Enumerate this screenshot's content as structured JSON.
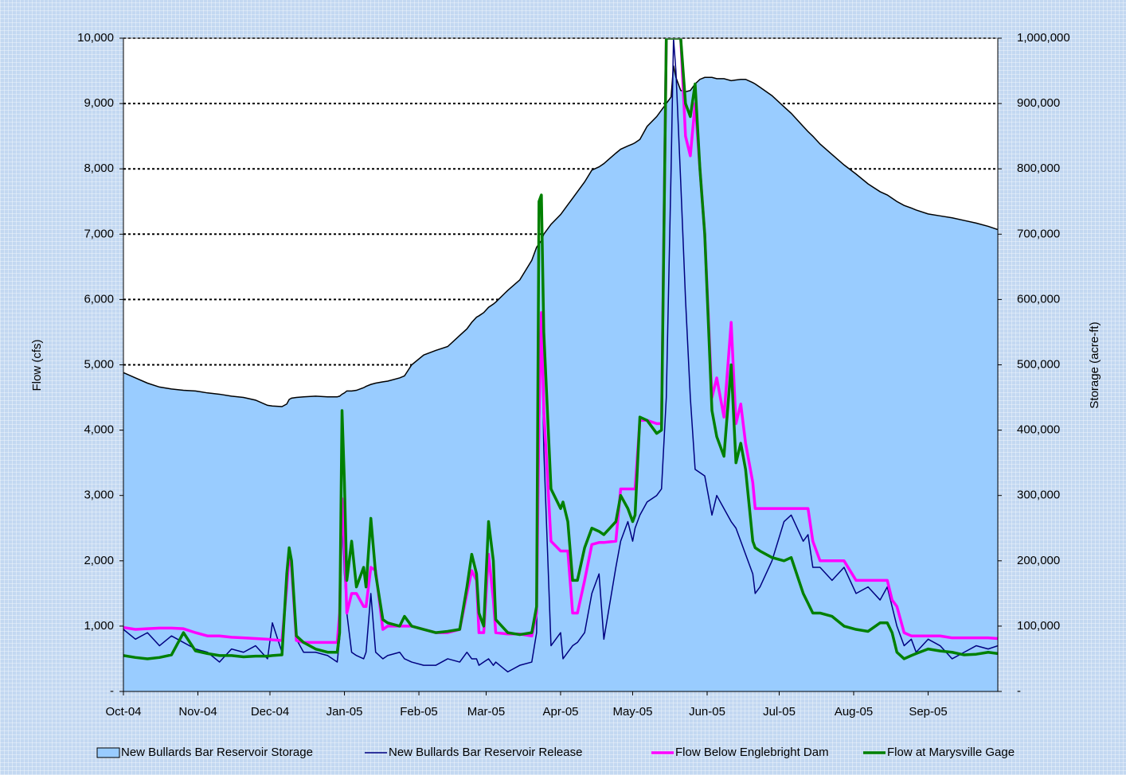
{
  "chart_data": {
    "type": "line",
    "xlim": [
      0,
      364
    ],
    "xticks": [
      {
        "value": 0,
        "label": "Oct-04"
      },
      {
        "value": 31,
        "label": "Nov-04"
      },
      {
        "value": 61,
        "label": "Dec-04"
      },
      {
        "value": 92,
        "label": "Jan-05"
      },
      {
        "value": 123,
        "label": "Feb-05"
      },
      {
        "value": 151,
        "label": "Mar-05"
      },
      {
        "value": 182,
        "label": "Apr-05"
      },
      {
        "value": 212,
        "label": "May-05"
      },
      {
        "value": 243,
        "label": "Jun-05"
      },
      {
        "value": 273,
        "label": "Jul-05"
      },
      {
        "value": 304,
        "label": "Aug-05"
      },
      {
        "value": 335,
        "label": "Sep-05"
      }
    ],
    "ylabel": "Flow (cfs)",
    "y2label": "Storage (acre-ft)",
    "ylim": [
      0,
      10000
    ],
    "yticks": [
      {
        "value": 0,
        "label": "-"
      },
      {
        "value": 1000,
        "label": "1,000"
      },
      {
        "value": 2000,
        "label": "2,000"
      },
      {
        "value": 3000,
        "label": "3,000"
      },
      {
        "value": 4000,
        "label": "4,000"
      },
      {
        "value": 5000,
        "label": "5,000"
      },
      {
        "value": 6000,
        "label": "6,000"
      },
      {
        "value": 7000,
        "label": "7,000"
      },
      {
        "value": 8000,
        "label": "8,000"
      },
      {
        "value": 9000,
        "label": "9,000"
      },
      {
        "value": 10000,
        "label": "10,000"
      }
    ],
    "y2lim": [
      0,
      1000000
    ],
    "y2ticks": [
      {
        "value": 0,
        "label": "-"
      },
      {
        "value": 100000,
        "label": "100,000"
      },
      {
        "value": 200000,
        "label": "200,000"
      },
      {
        "value": 300000,
        "label": "300,000"
      },
      {
        "value": 400000,
        "label": "400,000"
      },
      {
        "value": 500000,
        "label": "500,000"
      },
      {
        "value": 600000,
        "label": "600,000"
      },
      {
        "value": 700000,
        "label": "700,000"
      },
      {
        "value": 800000,
        "label": "800,000"
      },
      {
        "value": 900000,
        "label": "900,000"
      },
      {
        "value": 1000000,
        "label": "1,000,000"
      }
    ],
    "grid": true,
    "legend": "bottom",
    "x": [
      0,
      5,
      10,
      15,
      20,
      25,
      30,
      35,
      40,
      45,
      50,
      55,
      60,
      62,
      66,
      68,
      69,
      70,
      72,
      75,
      80,
      85,
      89,
      90,
      91,
      92,
      93,
      95,
      97,
      100,
      101,
      103,
      105,
      108,
      110,
      115,
      117,
      120,
      125,
      130,
      135,
      140,
      143,
      145,
      147,
      148,
      150,
      152,
      154,
      155,
      160,
      165,
      170,
      172,
      173,
      174,
      175,
      178,
      182,
      183,
      185,
      187,
      189,
      192,
      195,
      198,
      200,
      205,
      207,
      210,
      212,
      213,
      215,
      218,
      222,
      224,
      226,
      228,
      229,
      230,
      232,
      234,
      236,
      238,
      240,
      242,
      245,
      247,
      250,
      253,
      255,
      257,
      259,
      262,
      263,
      265,
      270,
      275,
      278,
      283,
      285,
      287,
      290,
      295,
      300,
      305,
      310,
      315,
      318,
      320,
      322,
      325,
      328,
      330,
      335,
      340,
      345,
      350,
      355,
      360,
      364
    ],
    "series": [
      {
        "name": "New Bullards Bar Reservoir Storage",
        "color": "#99ccff",
        "style": "area",
        "axis": "y2",
        "values": [
          488000,
          480000,
          472000,
          466000,
          463000,
          461000,
          460000,
          457000,
          455000,
          452000,
          450000,
          446000,
          438000,
          437000,
          436000,
          440000,
          447000,
          449000,
          450000,
          451000,
          452000,
          451000,
          451000,
          452000,
          455000,
          457000,
          460000,
          460000,
          461000,
          465000,
          467000,
          470000,
          472000,
          474000,
          475000,
          480000,
          483000,
          500000,
          515000,
          522000,
          528000,
          545000,
          555000,
          565000,
          573000,
          575000,
          580000,
          588000,
          593000,
          596000,
          614000,
          630000,
          660000,
          680000,
          685000,
          690000,
          700000,
          715000,
          730000,
          735000,
          745000,
          755000,
          765000,
          780000,
          798000,
          803000,
          808000,
          824000,
          830000,
          835000,
          838000,
          840000,
          845000,
          865000,
          880000,
          890000,
          900000,
          910000,
          958000,
          940000,
          920000,
          918000,
          920000,
          930000,
          937000,
          940000,
          940000,
          938000,
          938000,
          935000,
          936000,
          937000,
          937000,
          932000,
          930000,
          925000,
          912000,
          895000,
          885000,
          865000,
          857000,
          850000,
          838000,
          822000,
          806000,
          792000,
          777000,
          765000,
          760000,
          755000,
          750000,
          744000,
          740000,
          737000,
          731000,
          728000,
          725000,
          721000,
          717000,
          712000,
          707000
        ]
      },
      {
        "name": "New Bullards Bar Reservoir Release",
        "color": "#000080",
        "style": "thin",
        "values": [
          950,
          800,
          900,
          700,
          850,
          750,
          650,
          600,
          450,
          650,
          600,
          700,
          500,
          1050,
          600,
          1700,
          2100,
          1900,
          800,
          600,
          600,
          550,
          450,
          800,
          2800,
          1800,
          1200,
          600,
          550,
          500,
          600,
          1500,
          600,
          500,
          550,
          600,
          500,
          450,
          400,
          400,
          500,
          450,
          600,
          500,
          500,
          400,
          450,
          500,
          400,
          450,
          300,
          400,
          450,
          900,
          3500,
          5800,
          3700,
          700,
          900,
          500,
          600,
          700,
          750,
          900,
          1500,
          1800,
          800,
          1900,
          2300,
          2600,
          2300,
          2500,
          2700,
          2900,
          3000,
          3100,
          4500,
          8000,
          10000,
          9500,
          7800,
          6000,
          4500,
          3400,
          3350,
          3300,
          2700,
          3000,
          2800,
          2600,
          2500,
          2300,
          2100,
          1800,
          1500,
          1600,
          2000,
          2600,
          2700,
          2300,
          2400,
          1900,
          1900,
          1700,
          1900,
          1500,
          1600,
          1400,
          1600,
          1300,
          1000,
          700,
          800,
          600,
          800,
          700,
          500,
          600,
          700,
          650,
          700
        ]
      },
      {
        "name": "Flow Below Englebright Dam",
        "color": "#ff00ff",
        "style": "thick",
        "values": [
          980,
          950,
          960,
          970,
          970,
          960,
          900,
          850,
          850,
          830,
          820,
          810,
          800,
          790,
          780,
          1600,
          2100,
          1900,
          780,
          750,
          750,
          750,
          750,
          1200,
          2950,
          2300,
          1200,
          1500,
          1500,
          1300,
          1300,
          1900,
          1850,
          950,
          1000,
          1000,
          1000,
          1000,
          950,
          900,
          900,
          950,
          1500,
          1850,
          1700,
          900,
          900,
          2100,
          1400,
          900,
          880,
          880,
          850,
          1200,
          4200,
          5800,
          4300,
          2300,
          2150,
          2150,
          2150,
          1200,
          1200,
          1700,
          2250,
          2280,
          2280,
          2300,
          3100,
          3100,
          3100,
          3100,
          4150,
          4150,
          4100,
          4100,
          10000,
          10000,
          10000,
          10000,
          10000,
          8500,
          8200,
          9000,
          8000,
          7000,
          4500,
          4800,
          4200,
          5650,
          4100,
          4400,
          3800,
          3200,
          2800,
          2800,
          2800,
          2800,
          2800,
          2800,
          2800,
          2300,
          2000,
          2000,
          2000,
          1700,
          1700,
          1700,
          1700,
          1400,
          1300,
          900,
          850,
          850,
          850,
          850,
          820,
          820,
          820,
          820,
          810
        ]
      },
      {
        "name": "Flow at Marysville Gage",
        "color": "#008000",
        "style": "thick",
        "values": [
          550,
          520,
          500,
          520,
          560,
          900,
          620,
          580,
          550,
          550,
          530,
          540,
          540,
          550,
          560,
          1800,
          2200,
          2000,
          850,
          750,
          650,
          600,
          600,
          900,
          4300,
          3200,
          1700,
          2300,
          1600,
          1900,
          1600,
          2650,
          1800,
          1100,
          1050,
          1000,
          1150,
          1000,
          950,
          900,
          920,
          950,
          1600,
          2100,
          1800,
          1200,
          1000,
          2600,
          2000,
          1100,
          900,
          870,
          900,
          1300,
          7500,
          7600,
          5500,
          3100,
          2800,
          2900,
          2600,
          1700,
          1700,
          2200,
          2500,
          2450,
          2400,
          2600,
          3000,
          2800,
          2600,
          2700,
          4200,
          4150,
          3950,
          4000,
          10000,
          10000,
          10000,
          10000,
          10000,
          9000,
          8800,
          9300,
          8000,
          7000,
          4300,
          3900,
          3600,
          5000,
          3500,
          3800,
          3400,
          2300,
          2200,
          2150,
          2050,
          2000,
          2050,
          1500,
          1350,
          1200,
          1200,
          1150,
          1000,
          950,
          920,
          1050,
          1050,
          900,
          600,
          500,
          550,
          580,
          650,
          620,
          600,
          560,
          570,
          600,
          580
        ]
      }
    ]
  }
}
